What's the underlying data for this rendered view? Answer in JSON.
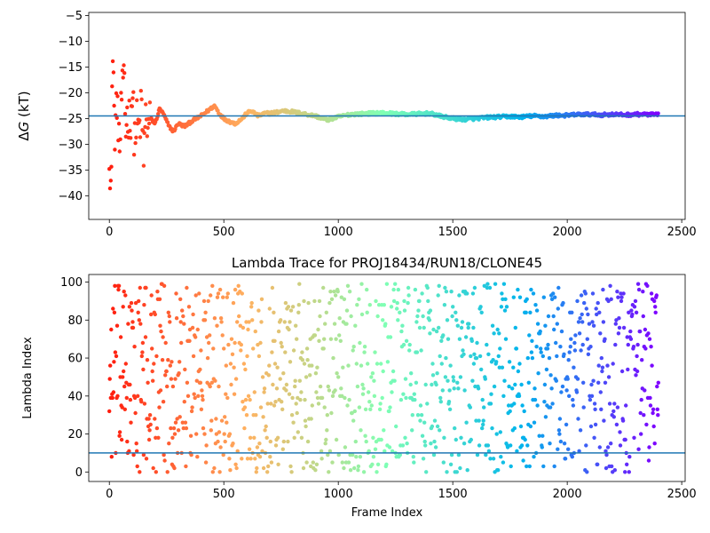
{
  "figure": {
    "background": "#ffffff",
    "colormap": "rainbow-reversed",
    "colormap_stops": [
      "#ff1d0e",
      "#ffb160",
      "#80ffb4",
      "#00b4ec",
      "#8000ff"
    ],
    "reference_line_color": "#1f77b4"
  },
  "chart_data": [
    {
      "type": "scatter",
      "title": "",
      "xlabel": "",
      "ylabel": "ΔG (kT)",
      "ylabel_parts": {
        "prefix": "Δ",
        "symbol": "G",
        "unit": " (kT)"
      },
      "xlim": [
        -90,
        2515
      ],
      "ylim": [
        -44.6,
        -4.4
      ],
      "xticks": [
        0,
        500,
        1000,
        1500,
        2000,
        2500
      ],
      "xtick_labels": [
        "0",
        "500",
        "1000",
        "1500",
        "2000",
        "2500"
      ],
      "yticks": [
        -40,
        -35,
        -30,
        -25,
        -20,
        -15,
        -10,
        -5
      ],
      "ytick_labels": [
        "−40",
        "−35",
        "−30",
        "−25",
        "−20",
        "−15",
        "−10",
        "−5"
      ],
      "grid": false,
      "legend": "none",
      "color_by": "frame_index",
      "reference_line": {
        "orientation": "horizontal",
        "y": -24.5
      },
      "n_frames": 2400,
      "series": [
        {
          "x": [
            0,
            8,
            15,
            20,
            25,
            30,
            32,
            38,
            45,
            50,
            55,
            60,
            65,
            70,
            80,
            90,
            100,
            110,
            120,
            130,
            140,
            150,
            160,
            170,
            180,
            200,
            220,
            240,
            260,
            280,
            300,
            330,
            360,
            400,
            430,
            460,
            480,
            500,
            520,
            550,
            580,
            600,
            620,
            650,
            680,
            700,
            730,
            760,
            800,
            850,
            900,
            950,
            1000,
            1050,
            1100,
            1150,
            1200,
            1250,
            1300,
            1350,
            1400,
            1450,
            1500,
            1550,
            1600,
            1650,
            1700,
            1750,
            1800,
            1850,
            1900,
            1950,
            2000,
            2050,
            2100,
            2150,
            2200,
            2250,
            2300,
            2350,
            2400
          ],
          "y": [
            -30,
            -40,
            -10,
            -20,
            -35,
            -15.5,
            -28,
            -24,
            -31,
            -26,
            -19,
            -22,
            -12.5,
            -27,
            -24,
            -25.5,
            -20,
            -29,
            -26,
            -27.5,
            -23,
            -32.5,
            -24,
            -27,
            -25,
            -26,
            -23,
            -24.5,
            -26.5,
            -27.5,
            -26,
            -26.5,
            -25.5,
            -24.5,
            -23.5,
            -22.5,
            -24,
            -25,
            -25.5,
            -26,
            -25,
            -24,
            -23.5,
            -24.5,
            -24,
            -24,
            -23.8,
            -23.5,
            -23.7,
            -24.1,
            -24.5,
            -25.3,
            -24.7,
            -24.2,
            -24.1,
            -24,
            -23.9,
            -24.1,
            -24.2,
            -24.1,
            -24,
            -24.6,
            -25,
            -25.2,
            -25,
            -24.8,
            -24.7,
            -24.6,
            -24.7,
            -24.5,
            -24.6,
            -24.4,
            -24.4,
            -24.2,
            -24.2,
            -24.3,
            -24.2,
            -24.3,
            -24.2,
            -24.2,
            -24.3
          ]
        }
      ]
    },
    {
      "type": "scatter",
      "title": "Lambda Trace for PROJ18434/RUN18/CLONE45",
      "xlabel": "Frame Index",
      "ylabel": "Lambda Index",
      "xlim": [
        -90,
        2515
      ],
      "ylim": [
        -5,
        104
      ],
      "xticks": [
        0,
        500,
        1000,
        1500,
        2000,
        2500
      ],
      "xtick_labels": [
        "0",
        "500",
        "1000",
        "1500",
        "2000",
        "2500"
      ],
      "yticks": [
        0,
        20,
        40,
        60,
        80,
        100
      ],
      "ytick_labels": [
        "0",
        "20",
        "40",
        "60",
        "80",
        "100"
      ],
      "grid": false,
      "legend": "none",
      "color_by": "frame_index",
      "reference_line": {
        "orientation": "horizontal",
        "y": 10
      },
      "n_frames": 2400,
      "series": [
        {
          "x": [
            0,
            10,
            20,
            30,
            40,
            50,
            60,
            75,
            90,
            110,
            130,
            150,
            175,
            200,
            230,
            260,
            290,
            320,
            350,
            380,
            410,
            440,
            470,
            500,
            530,
            560,
            590,
            620,
            650,
            680,
            710,
            740,
            770,
            800,
            830,
            860,
            890,
            920,
            950,
            980,
            1010,
            1040,
            1070,
            1100,
            1130,
            1160,
            1190,
            1220,
            1250,
            1280,
            1310,
            1340,
            1370,
            1400,
            1430,
            1460,
            1490,
            1520,
            1550,
            1580,
            1610,
            1640,
            1670,
            1700,
            1730,
            1760,
            1790,
            1820,
            1850,
            1880,
            1910,
            1940,
            1970,
            2000,
            2030,
            2060,
            2090,
            2120,
            2150,
            2180,
            2210,
            2240,
            2270,
            2300,
            2330,
            2360,
            2390
          ],
          "y": [
            98,
            5,
            70,
            40,
            88,
            20,
            99,
            55,
            30,
            85,
            10,
            62,
            45,
            95,
            8,
            78,
            35,
            58,
            22,
            90,
            50,
            15,
            72,
            99,
            38,
            65,
            3,
            82,
            28,
            47,
            93,
            12,
            68,
            33,
            87,
            5,
            57,
            24,
            96,
            42,
            75,
            18,
            63,
            2,
            84,
            51,
            30,
            97,
            9,
            70,
            44,
            88,
            21,
            60,
            35,
            92,
            14,
            77,
            48,
            26,
            99,
            6,
            66,
            39,
            83,
            17,
            55,
            90,
            31,
            72,
            11,
            46,
            95,
            23,
            64,
            2,
            80,
            37,
            58,
            94,
            19,
            50,
            86,
            28,
            98,
            41,
            70
          ]
        }
      ]
    }
  ]
}
